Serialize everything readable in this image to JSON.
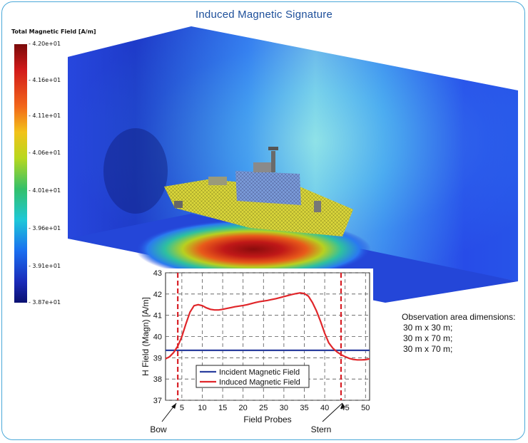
{
  "title": "Induced Magnetic Signature",
  "colorbar": {
    "title": "Total Magnetic Field [A/m]",
    "ticks": [
      "- 4.20e+01",
      "- 4.16e+01",
      "- 4.11e+01",
      "- 4.06e+01",
      "- 4.01e+01",
      "- 3.96e+01",
      "- 3.91e+01",
      "- 3.87e+01"
    ]
  },
  "observation": {
    "heading": "Observation area dimensions:",
    "lines": [
      "30 m x 30 m;",
      "30 m x 70 m;",
      "30 m x 70 m;"
    ]
  },
  "colors": {
    "incident": "#2b3f9e",
    "induced": "#e0262a",
    "marker": "#d81f26",
    "grid": "#555555",
    "frame": "#4aa8d8"
  },
  "annotations": {
    "bow": "Bow",
    "stern": "Stern"
  },
  "chart_data": {
    "type": "line",
    "xlabel": "Field Probes",
    "ylabel": "H Field (Magn) [A/m]",
    "xlim": [
      1,
      51
    ],
    "ylim": [
      37,
      43
    ],
    "xticks": [
      5,
      10,
      15,
      20,
      25,
      30,
      35,
      40,
      45,
      50
    ],
    "yticks": [
      37,
      38,
      39,
      40,
      41,
      42,
      43
    ],
    "grid": true,
    "legend_position": "lower-center",
    "series": [
      {
        "name": "Incident Magnetic Field",
        "x": [
          1,
          51
        ],
        "y": [
          39.35,
          39.35
        ]
      },
      {
        "name": "Induced Magnetic Field",
        "x": [
          1,
          2,
          3,
          4,
          5,
          6,
          7,
          8,
          9,
          10,
          11,
          12,
          13,
          14,
          15,
          16,
          17,
          18,
          19,
          20,
          21,
          22,
          23,
          24,
          25,
          26,
          27,
          28,
          29,
          30,
          31,
          32,
          33,
          34,
          35,
          36,
          37,
          38,
          39,
          40,
          41,
          42,
          43,
          44,
          45,
          46,
          47,
          48,
          49,
          50,
          51
        ],
        "y": [
          38.95,
          39.05,
          39.25,
          39.55,
          40.0,
          40.6,
          41.15,
          41.45,
          41.5,
          41.45,
          41.35,
          41.28,
          41.25,
          41.25,
          41.28,
          41.32,
          41.36,
          41.4,
          41.43,
          41.46,
          41.5,
          41.55,
          41.6,
          41.64,
          41.67,
          41.7,
          41.74,
          41.78,
          41.83,
          41.88,
          41.93,
          41.98,
          42.02,
          42.05,
          42.02,
          41.9,
          41.6,
          41.2,
          40.7,
          40.15,
          39.7,
          39.45,
          39.28,
          39.15,
          39.05,
          38.97,
          38.92,
          38.9,
          38.9,
          38.91,
          38.95
        ]
      }
    ],
    "vertical_markers": [
      {
        "x": 4,
        "label": "Bow"
      },
      {
        "x": 44,
        "label": "Stern"
      }
    ]
  }
}
